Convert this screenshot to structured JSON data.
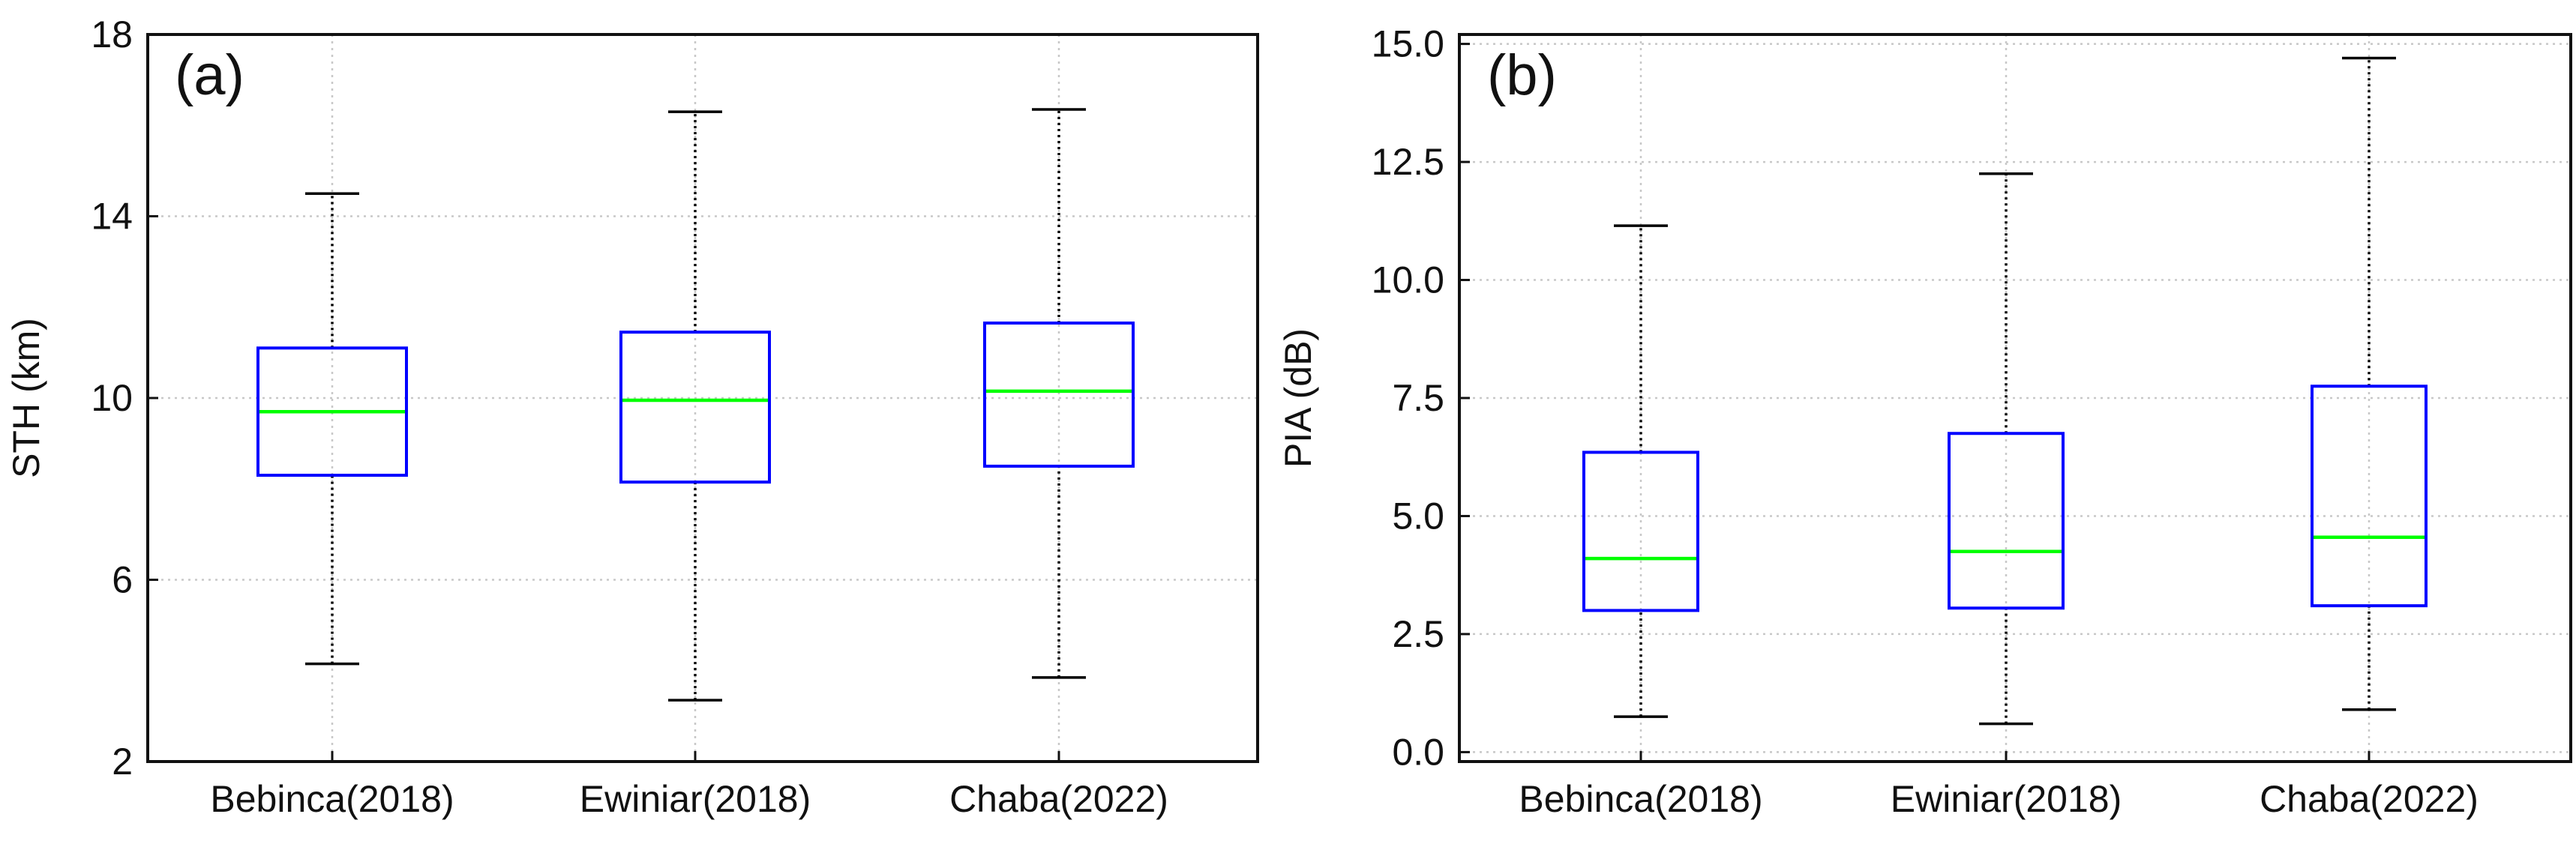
{
  "chart_data": [
    {
      "type": "boxplot",
      "panel_label": "(a)",
      "ylabel": "STH (km)",
      "xlabel": "",
      "ylim": [
        2,
        18
      ],
      "yticks": [
        2,
        6,
        10,
        14,
        18
      ],
      "ytick_labels": [
        "2",
        "6",
        "10",
        "14",
        "18"
      ],
      "grid": true,
      "categories": [
        "Bebinca(2018)",
        "Ewiniar(2018)",
        "Chaba(2022)"
      ],
      "boxes": [
        {
          "min": 4.15,
          "q1": 8.3,
          "median": 9.7,
          "q3": 11.1,
          "max": 14.5
        },
        {
          "min": 3.35,
          "q1": 8.15,
          "median": 9.95,
          "q3": 11.45,
          "max": 16.3
        },
        {
          "min": 3.85,
          "q1": 8.5,
          "median": 10.15,
          "q3": 11.65,
          "max": 16.35
        }
      ],
      "colors": {
        "box": "#0000ff",
        "median": "#00ff00",
        "whisker": "#000000"
      }
    },
    {
      "type": "boxplot",
      "panel_label": "(b)",
      "ylabel": "PIA (dB)",
      "xlabel": "",
      "ylim": [
        -0.2,
        15.2
      ],
      "yticks": [
        0,
        2.5,
        5,
        7.5,
        10,
        12.5,
        15
      ],
      "ytick_labels": [
        "0.0",
        "2.5",
        "5.0",
        "7.5",
        "10.0",
        "12.5",
        "15.0"
      ],
      "grid": true,
      "categories": [
        "Bebinca(2018)",
        "Ewiniar(2018)",
        "Chaba(2022)"
      ],
      "boxes": [
        {
          "min": 0.75,
          "q1": 3.0,
          "median": 4.1,
          "q3": 6.35,
          "max": 11.15
        },
        {
          "min": 0.6,
          "q1": 3.05,
          "median": 4.25,
          "q3": 6.75,
          "max": 12.25
        },
        {
          "min": 0.9,
          "q1": 3.1,
          "median": 4.55,
          "q3": 7.75,
          "max": 14.7
        }
      ],
      "colors": {
        "box": "#0000ff",
        "median": "#00ff00",
        "whisker": "#000000"
      }
    }
  ]
}
